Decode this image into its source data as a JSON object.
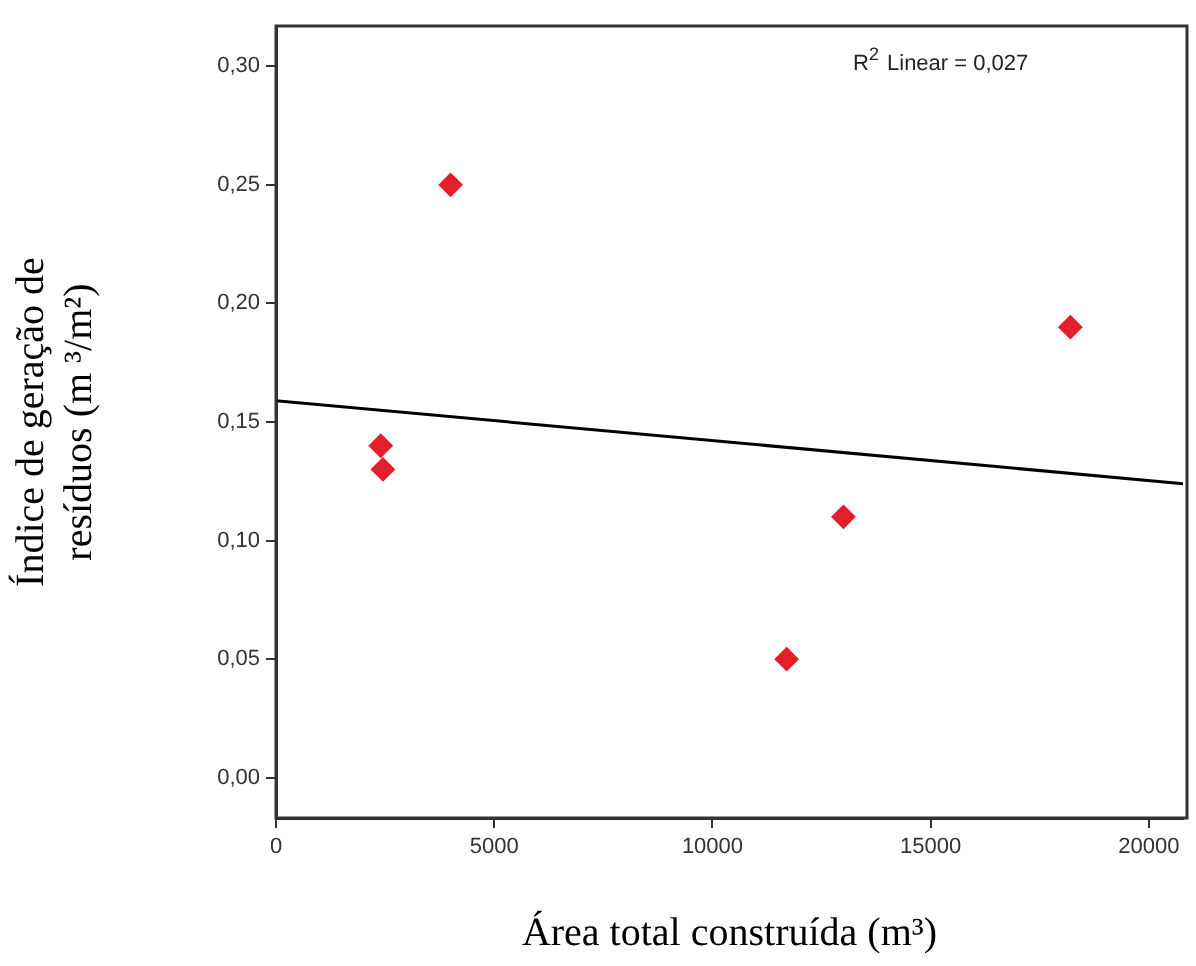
{
  "chart_data": {
    "type": "scatter",
    "xlabel": "Área total construída (m³)",
    "ylabel": "Índice de geração de\nresíduos (m ³/m²)",
    "annotations": [
      "R$^{2}$ Linear = 0,027"
    ],
    "series": [
      {
        "color": "#e41e2b",
        "marker": "diamond",
        "x": [
          2400,
          2450,
          4000,
          11700,
          13000,
          18200
        ],
        "values": [
          0.14,
          0.13,
          0.25,
          0.05,
          0.11,
          0.19
        ]
      },
      {
        "type": "line",
        "color": "#000000",
        "x": [
          0,
          20780
        ],
        "values": [
          0.159,
          0.124
        ]
      }
    ],
    "line_style": "solid",
    "grid": false,
    "legend": false,
    "xlim": [
      0,
      20780
    ],
    "xticks": [
      0,
      5000,
      10000,
      15000,
      20000
    ],
    "ylim": [
      -0.017,
      0.317
    ],
    "yticks": [
      {
        "value": 0,
        "label": "0,00"
      },
      {
        "value": 0.05,
        "label": "0,05"
      },
      {
        "value": 0.1,
        "label": "0,10"
      },
      {
        "value": 0.15,
        "label": "0,15"
      },
      {
        "value": 0.2,
        "label": "0,20"
      },
      {
        "value": 0.25,
        "label": "0,25"
      },
      {
        "value": 0.3,
        "label": "0,30"
      }
    ]
  }
}
